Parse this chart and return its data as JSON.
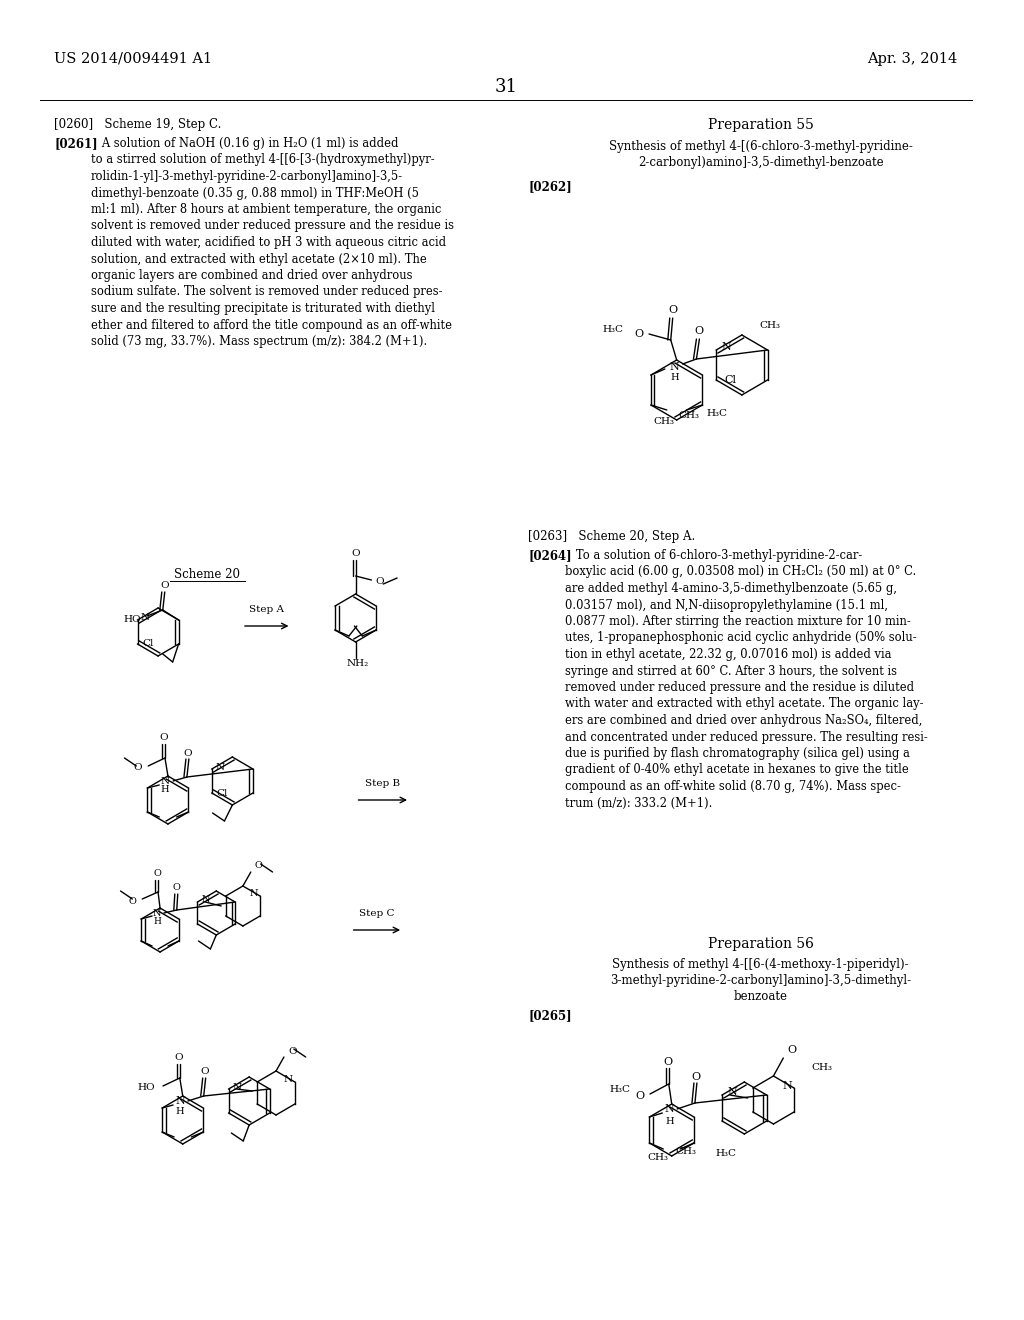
{
  "bg": "#ffffff",
  "tc": "#000000",
  "patent_num": "US 2014/0094491 A1",
  "date": "Apr. 3, 2014",
  "page_num": "31",
  "prep55_title": "Preparation 55",
  "prep55_sub1": "Synthesis of methyl 4-[(6-chloro-3-methyl-pyridine-",
  "prep55_sub2": "2-carbonyl)amino]-3,5-dimethyl-benzoate",
  "prep56_title": "Preparation 56",
  "prep56_sub1": "Synthesis of methyl 4-[[6-(4-methoxy-1-piperidyl)-",
  "prep56_sub2": "3-methyl-pyridine-2-carbonyl]amino]-3,5-dimethyl-",
  "prep56_sub3": "benzoate",
  "p0260": "[0260]   Scheme 19, Step C.",
  "p0261_tag": "[0261]",
  "p0261": "   A solution of NaOH (0.16 g) in H₂O (1 ml) is added\nto a stirred solution of methyl 4-[[6-[3-(hydroxymethyl)pyr-\nrolidin-1-yl]-3-methyl-pyridine-2-carbonyl]amino]-3,5-\ndimethyl-benzoate (0.35 g, 0.88 mmol) in THF:MeOH (5\nml:1 ml). After 8 hours at ambient temperature, the organic\nsolvent is removed under reduced pressure and the residue is\ndiluted with water, acidified to pH 3 with aqueous citric acid\nsolution, and extracted with ethyl acetate (2×10 ml). The\norganic layers are combined and dried over anhydrous\nsodium sulfate. The solvent is removed under reduced pres-\nsure and the resulting precipitate is triturated with diethyl\nether and filtered to afford the title compound as an off-white\nsolid (73 mg, 33.7%). Mass spectrum (m/z): 384.2 (M+1).",
  "p0262_tag": "[0262]",
  "p0263": "[0263]   Scheme 20, Step A.",
  "p0264_tag": "[0264]",
  "p0264": "   To a solution of 6-chloro-3-methyl-pyridine-2-car-\nboxylic acid (6.00 g, 0.03508 mol) in CH₂Cl₂ (50 ml) at 0° C.\nare added methyl 4-amino-3,5-dimethylbenzoate (5.65 g,\n0.03157 mol), and N,N-diisopropylethylamine (15.1 ml,\n0.0877 mol). After stirring the reaction mixture for 10 min-\nutes, 1-propanephosphonic acid cyclic anhydride (50% solu-\ntion in ethyl acetate, 22.32 g, 0.07016 mol) is added via\nsyringe and stirred at 60° C. After 3 hours, the solvent is\nremoved under reduced pressure and the residue is diluted\nwith water and extracted with ethyl acetate. The organic lay-\ners are combined and dried over anhydrous Na₂SO₄, filtered,\nand concentrated under reduced pressure. The resulting resi-\ndue is purified by flash chromatography (silica gel) using a\ngradient of 0-40% ethyl acetate in hexanes to give the title\ncompound as an off-white solid (8.70 g, 74%). Mass spec-\ntrum (m/z): 333.2 (M+1).",
  "p0265_tag": "[0265]",
  "scheme20_label": "Scheme 20"
}
